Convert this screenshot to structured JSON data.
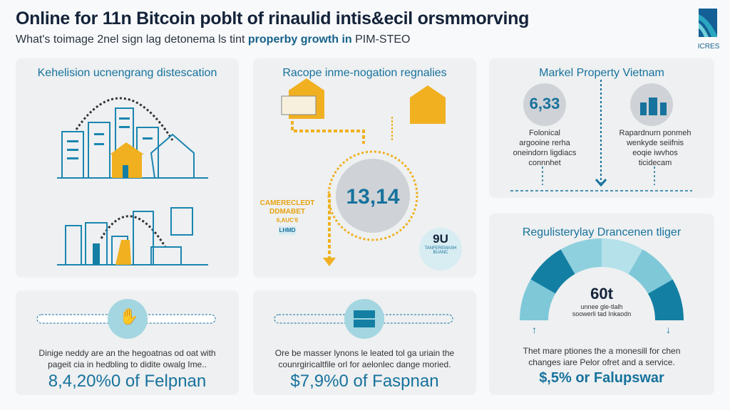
{
  "header": {
    "title": "Online for 11n Bitcoin poblt of rinaulid intis&ecil orsmmorving",
    "subtitle_plain": "What's toimage 2nel sign lag detonema ls tint ",
    "subtitle_bold": "properby growth in",
    "subtitle_end": " PIM-STEO",
    "logo_text": "ICRES"
  },
  "panel_urban": {
    "title": "Kehelision ucnengrang distescation"
  },
  "panel_flow": {
    "title": "Racope inme-nogation regnalies",
    "center_value": "13,14",
    "side_label_1": "CAMERECLEDT",
    "side_label_2": "DDMABET",
    "side_label_3": "6,AUC'6",
    "badge_text": "LHMD",
    "bubble_value": "9U",
    "bubble_caption_1": "TANFEREMASH",
    "bubble_caption_2": "BUANC"
  },
  "panel_market": {
    "title": "Markel Property Vietnam",
    "left_value": "6,33",
    "left_desc": [
      "Folonical",
      "argooine rerha",
      "oneindorn ligdiacs",
      "connnhet"
    ],
    "right_desc": [
      "Rapardnurn ponmeh",
      "wenkyde seiifnis",
      "eoqie iwvhos",
      "ticidecam"
    ]
  },
  "panel_gauge": {
    "title": "Regulisterylay Drancenen tliger",
    "gauge_value": "60t",
    "gauge_caption_1": "unnee gle-tlalh",
    "gauge_caption_2": "soowerli tad Inkaodn",
    "desc": [
      "Thet mare ptiones the a monesill for chen",
      "changes iare Pelor ofret and a service."
    ],
    "stat": "$,5% or Falupswar",
    "colors": [
      "#7ec8d8",
      "#137fa3",
      "#8fd0de",
      "#b4e1ea",
      "#7ec8d8",
      "#137fa3"
    ]
  },
  "panel_e": {
    "desc": [
      "Dinige neddy are an the hegoatnas od oat with",
      "pageit cia in hedbling to didite owalg Ime.."
    ],
    "stat": "8,4,20%0 of Felpnan"
  },
  "panel_f": {
    "desc": [
      "Ore be masser lynons le leated tol ga uriain the",
      "counrgiricaltfile orl for aelonlec dange moried."
    ],
    "stat": "$7,9%0 of Faspnan"
  },
  "colors": {
    "blue": "#17729d",
    "orange": "#f0b020",
    "navy": "#14233a"
  }
}
